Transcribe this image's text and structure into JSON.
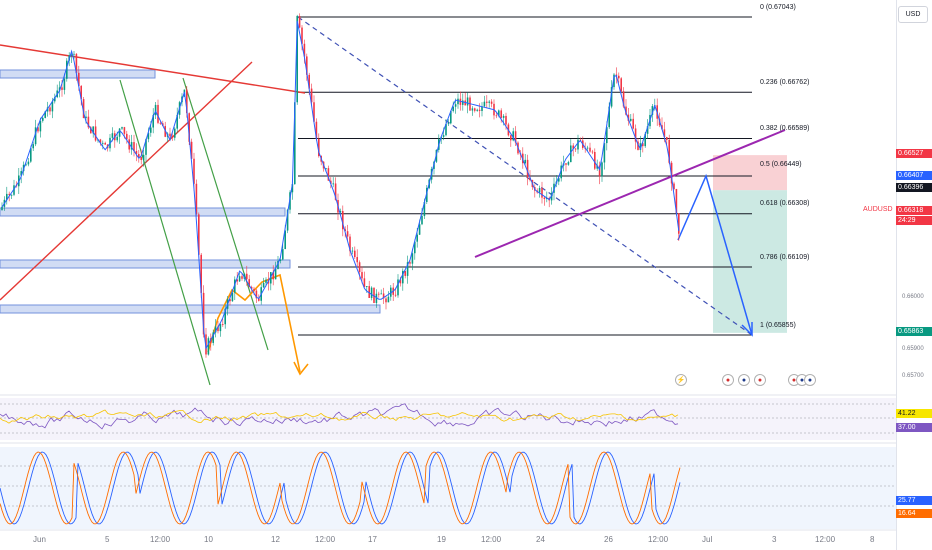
{
  "chart_data": {
    "type": "line",
    "symbol": "AUDUSD",
    "currency": "USD",
    "price_axis_ticks": [
      "0.66000",
      "0.65900",
      "0.65700"
    ],
    "fibonacci": [
      {
        "level": "0",
        "price": 0.67043,
        "label": "0 (0.67043)"
      },
      {
        "level": "0.236",
        "price": 0.66762,
        "label": "0.236 (0.66762)"
      },
      {
        "level": "0.382",
        "price": 0.66589,
        "label": "0.382 (0.66589)"
      },
      {
        "level": "0.5",
        "price": 0.66449,
        "label": "0.5 (0.66449)"
      },
      {
        "level": "0.618",
        "price": 0.66308,
        "label": "0.618 (0.66308)"
      },
      {
        "level": "0.786",
        "price": 0.66109,
        "label": "0.786 (0.66109)"
      },
      {
        "level": "1",
        "price": 0.65855,
        "label": "1 (0.65855)"
      }
    ],
    "position": {
      "stop": 0.66527,
      "entry": 0.66396,
      "target": 0.65863
    },
    "x_axis_labels": [
      "Jun",
      "5",
      "12:00",
      "10",
      "12",
      "12:00",
      "17",
      "19",
      "12:00",
      "24",
      "26",
      "12:00",
      "Jul",
      "3",
      "12:00",
      "8"
    ]
  },
  "price_badges": [
    {
      "value": "0.66527",
      "color": "#f23645"
    },
    {
      "value": "0.66407",
      "color": "#2962ff"
    },
    {
      "value": "0.66396",
      "color": "#131722"
    },
    {
      "value": "0.66318",
      "color": "#f23645"
    },
    {
      "value": "24:29",
      "color": "#f23645"
    },
    {
      "value": "0.65863",
      "color": "#089981"
    }
  ],
  "symbol_badge": "AUDUSD",
  "rsi": {
    "values": [
      "41.22",
      "37.00"
    ],
    "colors": [
      "#f7e600",
      "#7e57c2"
    ]
  },
  "stoch": {
    "values": [
      "25.77",
      "16.64"
    ],
    "colors": [
      "#2962ff",
      "#ff6d00"
    ]
  },
  "currency_button": "USD"
}
